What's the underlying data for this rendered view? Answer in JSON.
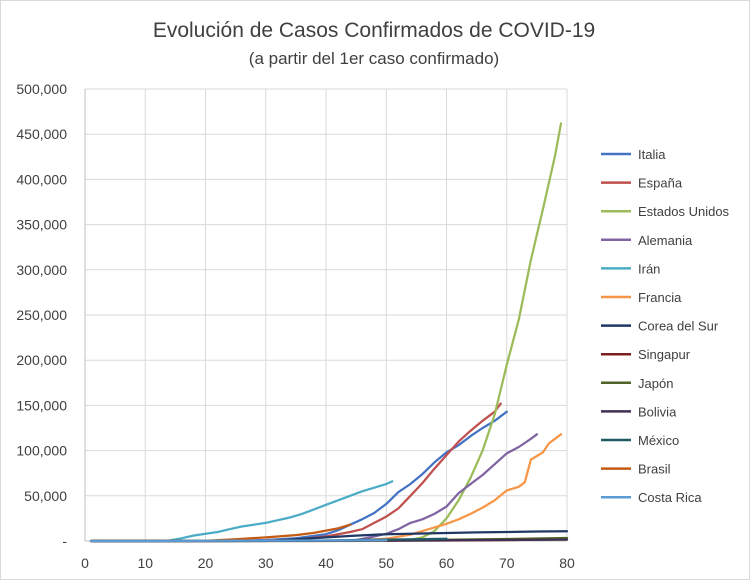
{
  "chart_data": {
    "type": "line",
    "title": "Evolución de Casos Confirmados de COVID-19",
    "subtitle": "(a partir del 1er caso confirmado)",
    "xlabel": "",
    "ylabel": "",
    "xlim": [
      0,
      80
    ],
    "ylim": [
      0,
      500000
    ],
    "x_ticks": [
      "0",
      "10",
      "20",
      "30",
      "40",
      "50",
      "60",
      "70",
      "80"
    ],
    "y_ticks": [
      "-",
      "50,000",
      "100,000",
      "150,000",
      "200,000",
      "250,000",
      "300,000",
      "350,000",
      "400,000",
      "450,000",
      "500,000"
    ],
    "grid": true,
    "legend_position": "right",
    "series": [
      {
        "name": "Italia",
        "color": "#4472C4",
        "points": [
          [
            1,
            0
          ],
          [
            20,
            0
          ],
          [
            25,
            200
          ],
          [
            30,
            1100
          ],
          [
            35,
            3000
          ],
          [
            40,
            7500
          ],
          [
            42,
            12000
          ],
          [
            44,
            18000
          ],
          [
            46,
            24000
          ],
          [
            48,
            31000
          ],
          [
            50,
            41000
          ],
          [
            52,
            54000
          ],
          [
            54,
            63000
          ],
          [
            56,
            74000
          ],
          [
            58,
            87000
          ],
          [
            60,
            98000
          ],
          [
            62,
            106000
          ],
          [
            64,
            116000
          ],
          [
            66,
            125000
          ],
          [
            68,
            133000
          ],
          [
            70,
            143000
          ]
        ]
      },
      {
        "name": "España",
        "color": "#C0504D",
        "points": [
          [
            1,
            0
          ],
          [
            25,
            0
          ],
          [
            30,
            500
          ],
          [
            35,
            1500
          ],
          [
            40,
            5000
          ],
          [
            44,
            10000
          ],
          [
            46,
            13000
          ],
          [
            48,
            20000
          ],
          [
            50,
            27000
          ],
          [
            52,
            36000
          ],
          [
            54,
            50000
          ],
          [
            56,
            64000
          ],
          [
            58,
            80000
          ],
          [
            60,
            95000
          ],
          [
            62,
            110000
          ],
          [
            64,
            122000
          ],
          [
            66,
            133000
          ],
          [
            68,
            143000
          ],
          [
            69,
            152000
          ]
        ]
      },
      {
        "name": "Estados Unidos",
        "color": "#9BBB59",
        "points": [
          [
            1,
            0
          ],
          [
            45,
            0
          ],
          [
            50,
            300
          ],
          [
            54,
            1200
          ],
          [
            56,
            4000
          ],
          [
            58,
            11000
          ],
          [
            60,
            25000
          ],
          [
            62,
            45000
          ],
          [
            64,
            70000
          ],
          [
            66,
            100000
          ],
          [
            68,
            140000
          ],
          [
            70,
            195000
          ],
          [
            72,
            245000
          ],
          [
            74,
            311000
          ],
          [
            76,
            367000
          ],
          [
            78,
            426000
          ],
          [
            79,
            462000
          ]
        ]
      },
      {
        "name": "Alemania",
        "color": "#8064A2",
        "points": [
          [
            1,
            0
          ],
          [
            35,
            0
          ],
          [
            40,
            100
          ],
          [
            45,
            1000
          ],
          [
            48,
            5000
          ],
          [
            50,
            8000
          ],
          [
            52,
            13000
          ],
          [
            54,
            20000
          ],
          [
            56,
            24000
          ],
          [
            58,
            30000
          ],
          [
            60,
            38000
          ],
          [
            62,
            53000
          ],
          [
            64,
            63000
          ],
          [
            66,
            73000
          ],
          [
            68,
            85000
          ],
          [
            70,
            97000
          ],
          [
            72,
            104000
          ],
          [
            74,
            113000
          ],
          [
            75,
            118000
          ]
        ]
      },
      {
        "name": "Irán",
        "color": "#4BACC6",
        "points": [
          [
            1,
            0
          ],
          [
            10,
            0
          ],
          [
            14,
            500
          ],
          [
            16,
            3000
          ],
          [
            18,
            6000
          ],
          [
            20,
            8000
          ],
          [
            22,
            10000
          ],
          [
            24,
            13000
          ],
          [
            26,
            16000
          ],
          [
            28,
            18000
          ],
          [
            30,
            20000
          ],
          [
            32,
            23000
          ],
          [
            34,
            26000
          ],
          [
            36,
            30000
          ],
          [
            38,
            35000
          ],
          [
            40,
            40000
          ],
          [
            42,
            45000
          ],
          [
            44,
            50000
          ],
          [
            46,
            55000
          ],
          [
            48,
            59000
          ],
          [
            50,
            63000
          ],
          [
            51,
            66000
          ]
        ]
      },
      {
        "name": "Francia",
        "color": "#F79646",
        "points": [
          [
            1,
            0
          ],
          [
            40,
            0
          ],
          [
            45,
            500
          ],
          [
            50,
            2500
          ],
          [
            54,
            7000
          ],
          [
            56,
            11000
          ],
          [
            58,
            15000
          ],
          [
            60,
            19000
          ],
          [
            62,
            24000
          ],
          [
            64,
            30000
          ],
          [
            66,
            37000
          ],
          [
            68,
            45000
          ],
          [
            70,
            56000
          ],
          [
            72,
            60000
          ],
          [
            73,
            65000
          ],
          [
            74,
            90000
          ],
          [
            76,
            98000
          ],
          [
            77,
            108000
          ],
          [
            78,
            113000
          ],
          [
            79,
            118000
          ]
        ]
      },
      {
        "name": "Corea del Sur",
        "color": "#1F3864",
        "points": [
          [
            1,
            0
          ],
          [
            30,
            0
          ],
          [
            35,
            2000
          ],
          [
            40,
            4000
          ],
          [
            45,
            6000
          ],
          [
            50,
            7500
          ],
          [
            55,
            8200
          ],
          [
            60,
            8900
          ],
          [
            65,
            9500
          ],
          [
            70,
            10000
          ],
          [
            75,
            10500
          ],
          [
            80,
            10800
          ]
        ]
      },
      {
        "name": "Singapur",
        "color": "#7B1E1E",
        "points": [
          [
            1,
            0
          ],
          [
            40,
            100
          ],
          [
            50,
            200
          ],
          [
            60,
            500
          ],
          [
            70,
            1000
          ],
          [
            75,
            1500
          ],
          [
            80,
            2000
          ]
        ]
      },
      {
        "name": "Japón",
        "color": "#4F6228",
        "points": [
          [
            1,
            0
          ],
          [
            40,
            300
          ],
          [
            50,
            800
          ],
          [
            60,
            1300
          ],
          [
            70,
            2200
          ],
          [
            75,
            2800
          ],
          [
            80,
            3300
          ]
        ]
      },
      {
        "name": "Bolivia",
        "color": "#3F3151",
        "points": [
          [
            1,
            0
          ],
          [
            20,
            80
          ],
          [
            30,
            140
          ],
          [
            40,
            400
          ],
          [
            50,
            550
          ],
          [
            60,
            750
          ],
          [
            70,
            1200
          ],
          [
            80,
            1600
          ]
        ]
      },
      {
        "name": "México",
        "color": "#215967",
        "points": [
          [
            1,
            0
          ],
          [
            20,
            20
          ],
          [
            30,
            200
          ],
          [
            40,
            600
          ],
          [
            45,
            1100
          ],
          [
            50,
            1500
          ],
          [
            55,
            2000
          ],
          [
            60,
            2500
          ]
        ]
      },
      {
        "name": "Brasil",
        "color": "#C55A11",
        "points": [
          [
            1,
            0
          ],
          [
            20,
            300
          ],
          [
            25,
            2000
          ],
          [
            30,
            4000
          ],
          [
            35,
            6500
          ],
          [
            38,
            9000
          ],
          [
            40,
            11500
          ],
          [
            42,
            14000
          ],
          [
            44,
            18000
          ]
        ]
      },
      {
        "name": "Costa Rica",
        "color": "#5B9BD5",
        "points": [
          [
            1,
            0
          ],
          [
            10,
            50
          ],
          [
            20,
            200
          ],
          [
            30,
            400
          ],
          [
            40,
            600
          ],
          [
            50,
            800
          ]
        ]
      }
    ]
  }
}
